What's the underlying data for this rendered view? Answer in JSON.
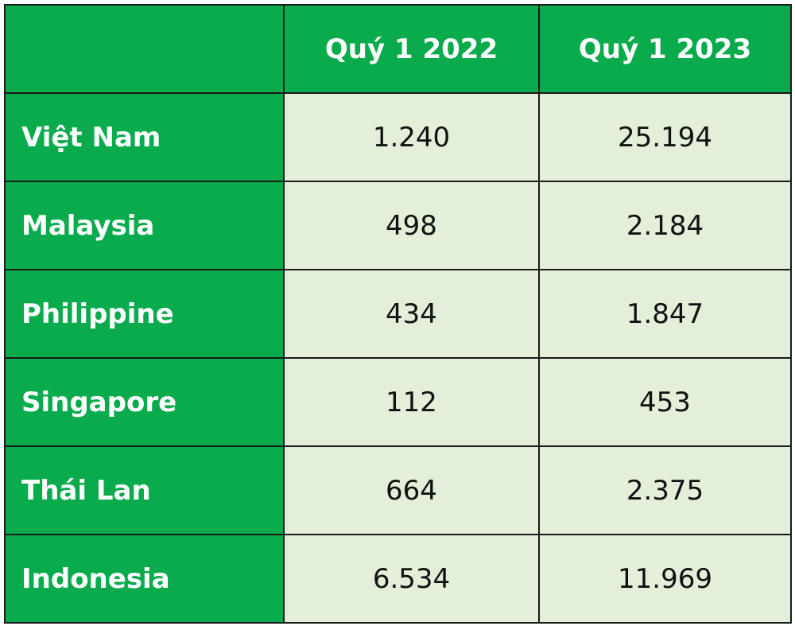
{
  "table": {
    "columns": [
      "Quý 1 2022",
      "Quý 1 2023"
    ],
    "rows": [
      [
        "Việt Nam",
        "1.240",
        "25.194"
      ],
      [
        "Malaysia",
        "498",
        "2.184"
      ],
      [
        "Philippine",
        "434",
        "1.847"
      ],
      [
        "Singapore",
        "112",
        "453"
      ],
      [
        "Thái Lan",
        "664",
        "2.375"
      ],
      [
        "Indonesia",
        "6.534",
        "11.969"
      ]
    ]
  }
}
